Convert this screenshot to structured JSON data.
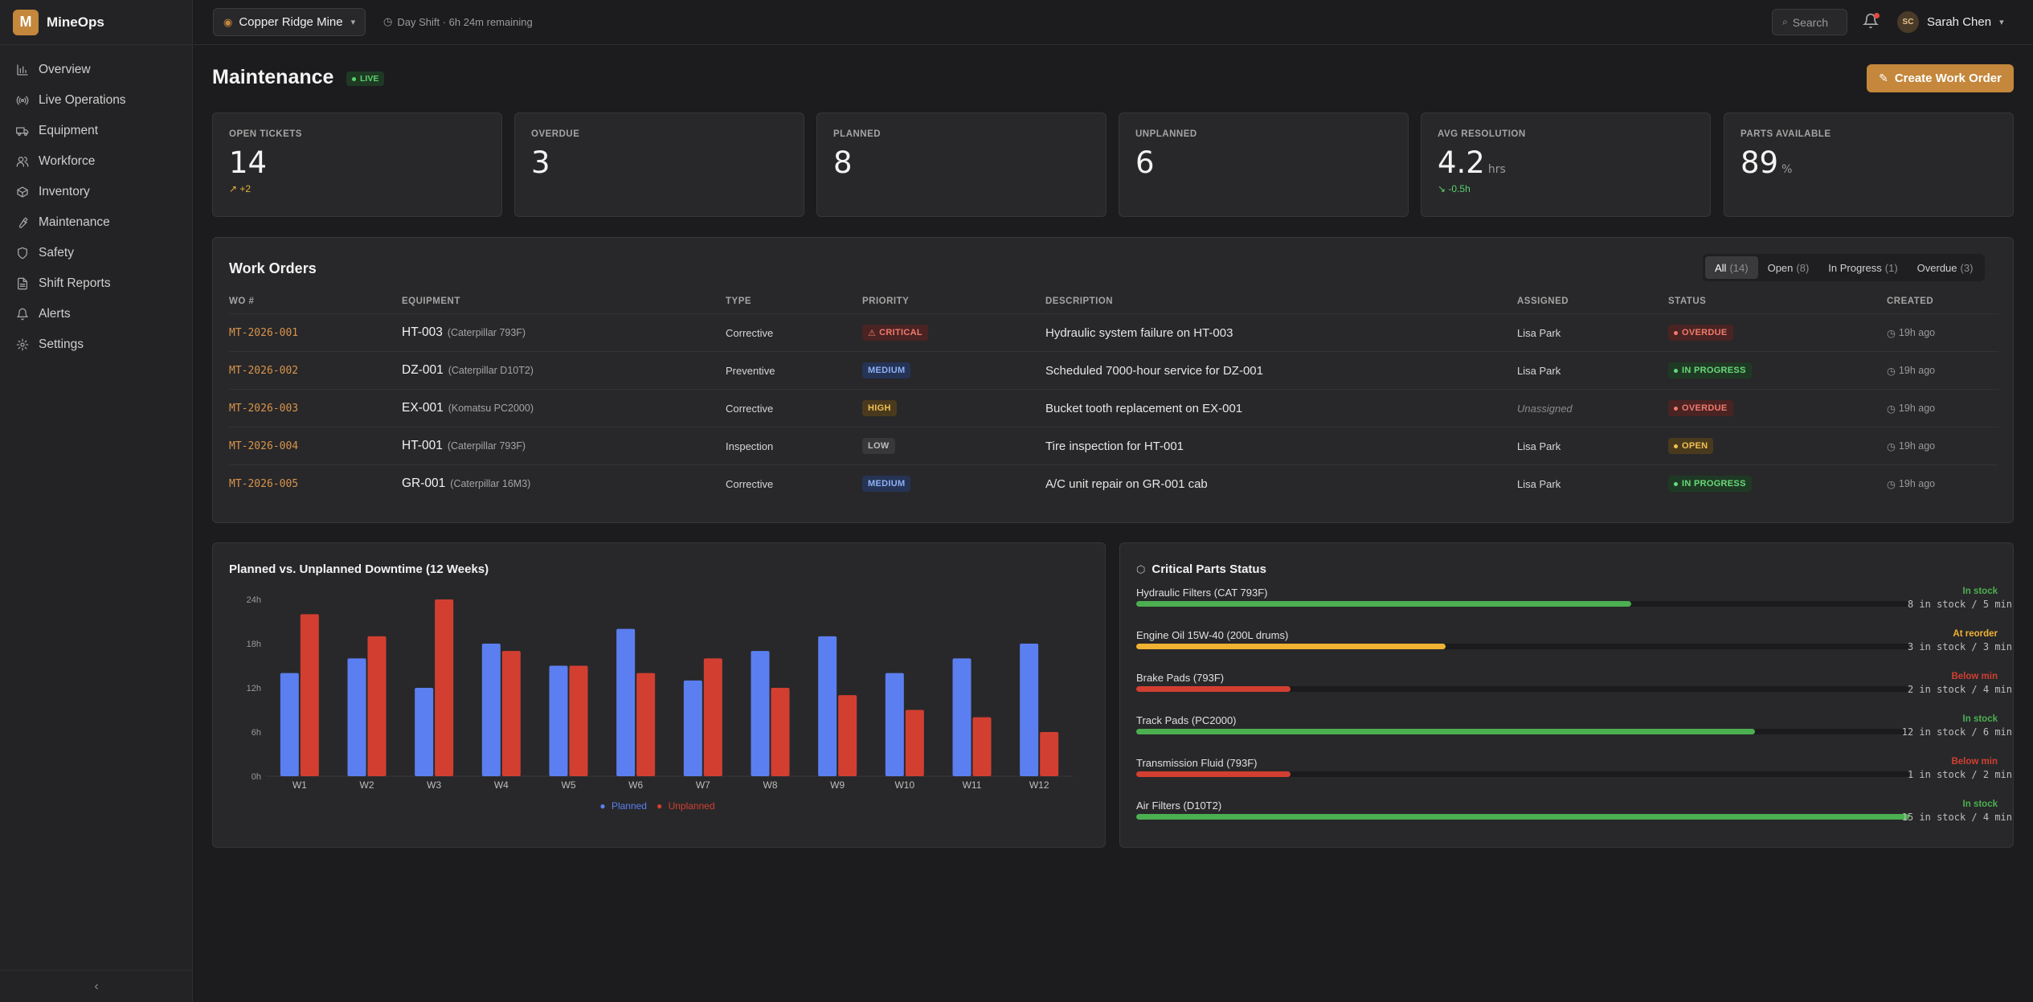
{
  "app": {
    "logo_letter": "M",
    "name": "MineOps"
  },
  "sidebar": {
    "items": [
      {
        "label": "Overview",
        "icon": "chart-icon"
      },
      {
        "label": "Live Operations",
        "icon": "broadcast-icon"
      },
      {
        "label": "Equipment",
        "icon": "truck-icon"
      },
      {
        "label": "Workforce",
        "icon": "users-icon"
      },
      {
        "label": "Inventory",
        "icon": "box-icon"
      },
      {
        "label": "Maintenance",
        "icon": "wrench-icon"
      },
      {
        "label": "Safety",
        "icon": "shield-icon"
      },
      {
        "label": "Shift Reports",
        "icon": "document-icon"
      },
      {
        "label": "Alerts",
        "icon": "bell-icon"
      },
      {
        "label": "Settings",
        "icon": "gear-icon"
      }
    ],
    "collapse_glyph": "‹"
  },
  "topbar": {
    "site": "Copper Ridge Mine",
    "shift": "Day Shift · 6h 24m remaining",
    "search_placeholder": "Search",
    "user_initials": "SC",
    "user_name": "Sarah Chen"
  },
  "header": {
    "title": "Maintenance",
    "live": "LIVE",
    "create_label": "Create Work Order"
  },
  "stats": [
    {
      "label": "OPEN TICKETS",
      "value": "14",
      "unit": "",
      "delta": "+2",
      "delta_dir": "up"
    },
    {
      "label": "OVERDUE",
      "value": "3",
      "unit": "",
      "delta": "",
      "delta_dir": ""
    },
    {
      "label": "PLANNED",
      "value": "8",
      "unit": "",
      "delta": "",
      "delta_dir": ""
    },
    {
      "label": "UNPLANNED",
      "value": "6",
      "unit": "",
      "delta": "",
      "delta_dir": ""
    },
    {
      "label": "AVG RESOLUTION",
      "value": "4.2",
      "unit": "hrs",
      "delta": "-0.5h",
      "delta_dir": "down"
    },
    {
      "label": "PARTS AVAILABLE",
      "value": "89",
      "unit": "%",
      "delta": "",
      "delta_dir": ""
    }
  ],
  "work_orders": {
    "title": "Work Orders",
    "tabs": [
      {
        "label": "All",
        "count": "(14)"
      },
      {
        "label": "Open",
        "count": "(8)"
      },
      {
        "label": "In Progress",
        "count": "(1)"
      },
      {
        "label": "Overdue",
        "count": "(3)"
      }
    ],
    "columns": [
      "WO #",
      "EQUIPMENT",
      "TYPE",
      "PRIORITY",
      "DESCRIPTION",
      "ASSIGNED",
      "STATUS",
      "CREATED"
    ],
    "rows": [
      {
        "id": "MT-2026-001",
        "equip": "HT-003",
        "model": "(Caterpillar 793F)",
        "type": "Corrective",
        "priority": "CRITICAL",
        "pclass": "pri-critical",
        "desc": "Hydraulic system failure on HT-003",
        "assigned": "Lisa Park",
        "status": "OVERDUE",
        "sclass": "st-overdue",
        "created": "19h ago"
      },
      {
        "id": "MT-2026-002",
        "equip": "DZ-001",
        "model": "(Caterpillar D10T2)",
        "type": "Preventive",
        "priority": "MEDIUM",
        "pclass": "pri-medium",
        "desc": "Scheduled 7000-hour service for DZ-001",
        "assigned": "Lisa Park",
        "status": "IN PROGRESS",
        "sclass": "st-progress",
        "created": "19h ago"
      },
      {
        "id": "MT-2026-003",
        "equip": "EX-001",
        "model": "(Komatsu PC2000)",
        "type": "Corrective",
        "priority": "HIGH",
        "pclass": "pri-high",
        "desc": "Bucket tooth replacement on EX-001",
        "assigned": "Unassigned",
        "status": "OVERDUE",
        "sclass": "st-overdue",
        "created": "19h ago"
      },
      {
        "id": "MT-2026-004",
        "equip": "HT-001",
        "model": "(Caterpillar 793F)",
        "type": "Inspection",
        "priority": "LOW",
        "pclass": "pri-low",
        "desc": "Tire inspection for HT-001",
        "assigned": "Lisa Park",
        "status": "OPEN",
        "sclass": "st-open",
        "created": "19h ago"
      },
      {
        "id": "MT-2026-005",
        "equip": "GR-001",
        "model": "(Caterpillar 16M3)",
        "type": "Corrective",
        "priority": "MEDIUM",
        "pclass": "pri-medium",
        "desc": "A/C unit repair on GR-001 cab",
        "assigned": "Lisa Park",
        "status": "IN PROGRESS",
        "sclass": "st-progress",
        "created": "19h ago"
      }
    ]
  },
  "chart_data": {
    "type": "bar",
    "title": "Planned vs. Unplanned Downtime (12 Weeks)",
    "categories": [
      "W1",
      "W2",
      "W3",
      "W4",
      "W5",
      "W6",
      "W7",
      "W8",
      "W9",
      "W10",
      "W11",
      "W12"
    ],
    "series": [
      {
        "name": "Planned",
        "color": "#5b7ff0",
        "values": [
          14,
          16,
          12,
          18,
          15,
          20,
          13,
          17,
          19,
          14,
          16,
          18
        ]
      },
      {
        "name": "Unplanned",
        "color": "#d23f31",
        "values": [
          22,
          19,
          24,
          17,
          15,
          14,
          16,
          12,
          11,
          9,
          8,
          6
        ]
      }
    ],
    "yticks": [
      "0h",
      "6h",
      "12h",
      "18h",
      "24h"
    ],
    "ylim": [
      0,
      24
    ],
    "legend": "bottom-center",
    "grid": false
  },
  "parts": {
    "title": "Critical Parts Status",
    "items": [
      {
        "name": "Hydraulic Filters (CAT 793F)",
        "state": "In stock",
        "stock": "8 in stock / 5 min",
        "level": 0.64,
        "color": "#4caf50"
      },
      {
        "name": "Engine Oil 15W-40 (200L drums)",
        "state": "At reorder",
        "stock": "3 in stock / 3 min",
        "level": 0.4,
        "color": "#f0b232"
      },
      {
        "name": "Brake Pads (793F)",
        "state": "Below min",
        "stock": "2 in stock / 4 min",
        "level": 0.2,
        "color": "#d23f31"
      },
      {
        "name": "Track Pads (PC2000)",
        "state": "In stock",
        "stock": "12 in stock / 6 min",
        "level": 0.8,
        "color": "#4caf50"
      },
      {
        "name": "Transmission Fluid (793F)",
        "state": "Below min",
        "stock": "1 in stock / 2 min",
        "level": 0.2,
        "color": "#d23f31"
      },
      {
        "name": "Air Filters (D10T2)",
        "state": "In stock",
        "stock": "15 in stock / 4 min",
        "level": 1.0,
        "color": "#4caf50"
      }
    ]
  }
}
